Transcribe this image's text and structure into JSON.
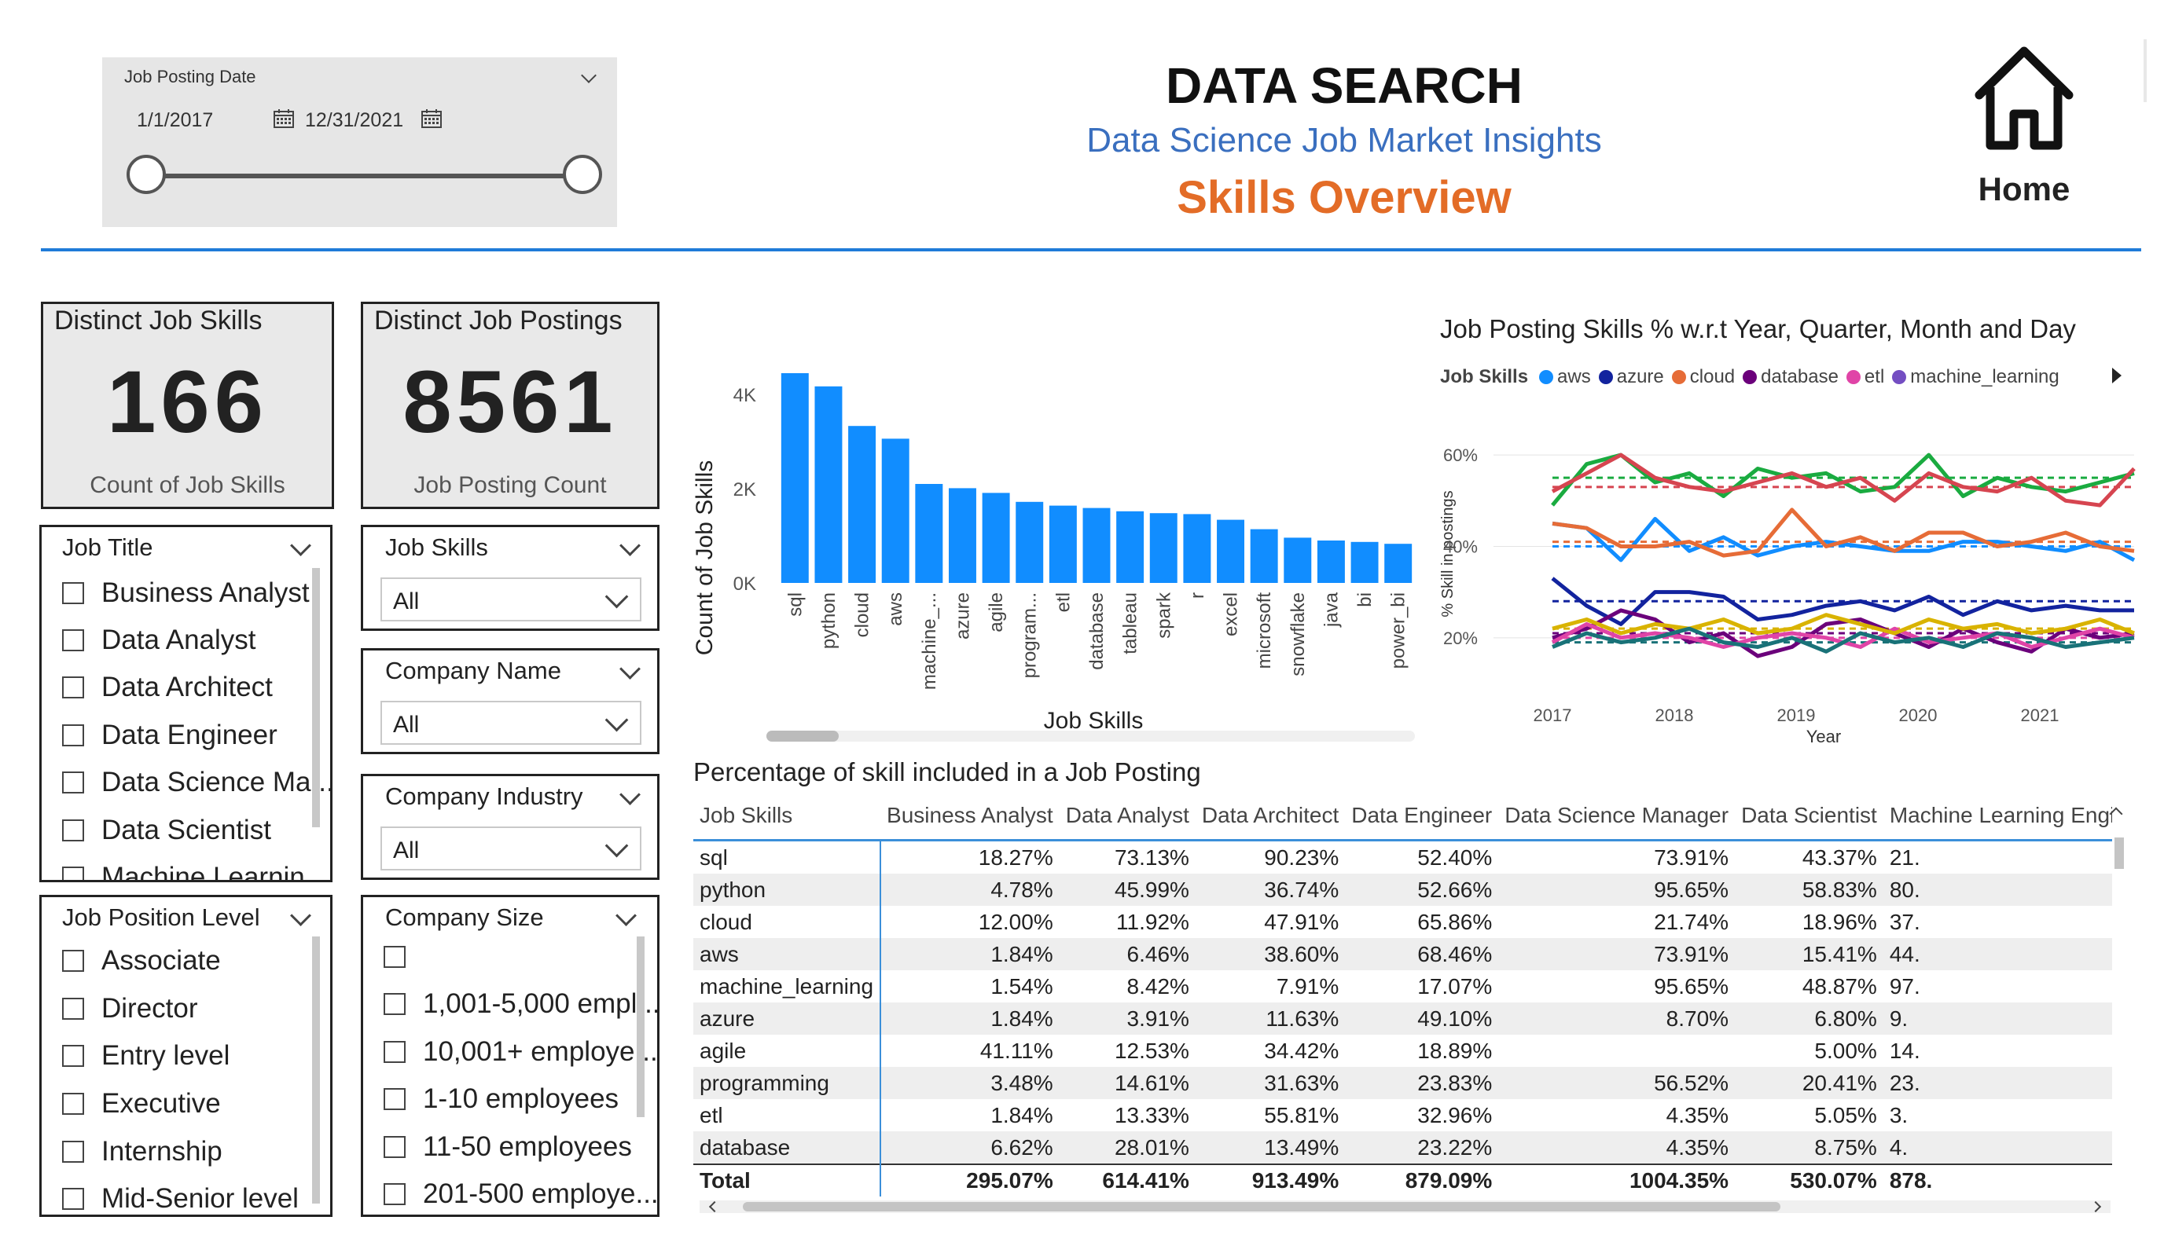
{
  "header": {
    "title": "DATA SEARCH",
    "subtitle": "Data Science Job Market Insights",
    "page": "Skills Overview",
    "home_label": "Home"
  },
  "date_slicer": {
    "label": "Job Posting Date",
    "start": "1/1/2017",
    "end": "12/31/2021"
  },
  "cards": {
    "skills": {
      "title": "Distinct Job Skills",
      "value": "166",
      "subtitle": "Count of Job Skills"
    },
    "postings": {
      "title": "Distinct Job Postings",
      "value": "8561",
      "subtitle": "Job Posting Count"
    }
  },
  "job_title": {
    "label": "Job Title",
    "options": [
      "Business Analyst",
      "Data Analyst",
      "Data Architect",
      "Data Engineer",
      "Data Science Ma...",
      "Data Scientist",
      "Machine Learnin..."
    ]
  },
  "job_position_level": {
    "label": "Job Position Level",
    "options": [
      "Associate",
      "Director",
      "Entry level",
      "Executive",
      "Internship",
      "Mid-Senior level"
    ]
  },
  "dropdowns": {
    "job_skills": {
      "label": "Job Skills",
      "value": "All"
    },
    "company_name": {
      "label": "Company Name",
      "value": "All"
    },
    "company_industry": {
      "label": "Company Industry",
      "value": "All"
    }
  },
  "company_size": {
    "label": "Company Size",
    "options": [
      "",
      "1,001-5,000 empl...",
      "10,001+ employe...",
      "1-10 employees",
      "11-50 employees",
      "201-500 employe..."
    ]
  },
  "colors": {
    "accent": "#1f7bd8",
    "bar": "#118dff",
    "subtitle": "#3a6fbf",
    "page": "#e36c27"
  },
  "chart_data": [
    {
      "type": "bar",
      "xlabel": "Job Skills",
      "ylabel": "Count of Job Skills",
      "yticks": [
        "0K",
        "2K",
        "4K"
      ],
      "ylim": [
        0,
        4700
      ],
      "categories": [
        "sql",
        "python",
        "cloud",
        "aws",
        "machine_...",
        "azure",
        "agile",
        "program...",
        "etl",
        "database",
        "tableau",
        "spark",
        "r",
        "excel",
        "microsoft",
        "snowflake",
        "java",
        "bi",
        "power_bi"
      ],
      "values": [
        4450,
        4170,
        3330,
        3060,
        2100,
        2010,
        1910,
        1720,
        1640,
        1590,
        1520,
        1480,
        1460,
        1340,
        1140,
        960,
        900,
        870,
        830
      ]
    },
    {
      "type": "line",
      "title": "Job Posting Skills % w.r.t Year, Quarter, Month and Day",
      "legend_title": "Job Skills",
      "legend": [
        {
          "name": "aws",
          "color": "#118dff"
        },
        {
          "name": "azure",
          "color": "#12239e"
        },
        {
          "name": "cloud",
          "color": "#e66c37"
        },
        {
          "name": "database",
          "color": "#6b007b"
        },
        {
          "name": "etl",
          "color": "#e044a7"
        },
        {
          "name": "machine_learning",
          "color": "#744ec2"
        }
      ],
      "xlabel": "Year",
      "ylabel": "% Skill in postings",
      "xticks": [
        "2017",
        "2018",
        "2019",
        "2020",
        "2021"
      ],
      "yticks": [
        "20%",
        "40%",
        "60%"
      ],
      "ylim": [
        10,
        65
      ],
      "series": [
        {
          "color": "#1aab40",
          "values": [
            49,
            58,
            60,
            54,
            56,
            51,
            57,
            55,
            56,
            52,
            53,
            60,
            51,
            55,
            53,
            52,
            54,
            56
          ]
        },
        {
          "color": "#d64550",
          "values": [
            52,
            56,
            60,
            55,
            53,
            52,
            54,
            56,
            53,
            55,
            50,
            56,
            53,
            52,
            55,
            50,
            49,
            57
          ]
        },
        {
          "color": "#118dff",
          "values": [
            45,
            44,
            37,
            46,
            39,
            42,
            38,
            40,
            41,
            40,
            39,
            39,
            41,
            41,
            40,
            39,
            41,
            37
          ]
        },
        {
          "color": "#e66c37",
          "values": [
            45,
            44,
            40,
            40,
            41,
            38,
            39,
            48,
            40,
            42,
            39,
            43,
            43,
            40,
            41,
            43,
            40,
            39
          ]
        },
        {
          "color": "#12239e",
          "values": [
            33,
            27,
            23,
            30,
            30,
            29,
            24,
            25,
            27,
            28,
            26,
            29,
            25,
            28,
            26,
            27,
            26,
            26
          ]
        },
        {
          "color": "#6b007b",
          "values": [
            20,
            22,
            26,
            24,
            19,
            21,
            16,
            18,
            23,
            24,
            21,
            18,
            22,
            19,
            17,
            22,
            20,
            21
          ]
        },
        {
          "color": "#e044a7",
          "values": [
            19,
            23,
            20,
            21,
            20,
            18,
            20,
            21,
            20,
            18,
            22,
            19,
            20,
            21,
            18,
            20,
            22,
            20
          ]
        },
        {
          "color": "#d9b300",
          "values": [
            22,
            24,
            21,
            23,
            22,
            24,
            21,
            22,
            25,
            23,
            21,
            24,
            22,
            23,
            21,
            22,
            24,
            21
          ]
        },
        {
          "color": "#197278",
          "values": [
            18,
            21,
            19,
            20,
            22,
            19,
            18,
            20,
            17,
            21,
            19,
            20,
            18,
            21,
            20,
            18,
            19,
            20
          ]
        }
      ],
      "trends": [
        {
          "color": "#1aab40",
          "value": 55
        },
        {
          "color": "#d64550",
          "value": 53
        },
        {
          "color": "#118dff",
          "value": 40
        },
        {
          "color": "#e66c37",
          "value": 41
        },
        {
          "color": "#12239e",
          "value": 28
        },
        {
          "color": "#6b007b",
          "value": 21
        },
        {
          "color": "#e044a7",
          "value": 20
        },
        {
          "color": "#d9b300",
          "value": 22
        },
        {
          "color": "#197278",
          "value": 19
        }
      ]
    },
    {
      "type": "table",
      "title": "Percentage of skill included in a Job Posting",
      "columns": [
        "Job Skills",
        "Business Analyst",
        "Data Analyst",
        "Data Architect",
        "Data Engineer",
        "Data Science Manager",
        "Data Scientist",
        "Machine Learning Engi"
      ],
      "rows": [
        [
          "sql",
          "18.27%",
          "73.13%",
          "90.23%",
          "52.40%",
          "73.91%",
          "43.37%",
          "21."
        ],
        [
          "python",
          "4.78%",
          "45.99%",
          "36.74%",
          "52.66%",
          "95.65%",
          "58.83%",
          "80."
        ],
        [
          "cloud",
          "12.00%",
          "11.92%",
          "47.91%",
          "65.86%",
          "21.74%",
          "18.96%",
          "37."
        ],
        [
          "aws",
          "1.84%",
          "6.46%",
          "38.60%",
          "68.46%",
          "73.91%",
          "15.41%",
          "44."
        ],
        [
          "machine_learning",
          "1.54%",
          "8.42%",
          "7.91%",
          "17.07%",
          "95.65%",
          "48.87%",
          "97."
        ],
        [
          "azure",
          "1.84%",
          "3.91%",
          "11.63%",
          "49.10%",
          "8.70%",
          "6.80%",
          "9."
        ],
        [
          "agile",
          "41.11%",
          "12.53%",
          "34.42%",
          "18.89%",
          "",
          "5.00%",
          "14."
        ],
        [
          "programming",
          "3.48%",
          "14.61%",
          "31.63%",
          "23.83%",
          "56.52%",
          "20.41%",
          "23."
        ],
        [
          "etl",
          "1.84%",
          "13.33%",
          "55.81%",
          "32.96%",
          "4.35%",
          "5.05%",
          "3."
        ],
        [
          "database",
          "6.62%",
          "28.01%",
          "13.49%",
          "23.22%",
          "4.35%",
          "8.75%",
          "4."
        ]
      ],
      "total": [
        "Total",
        "295.07%",
        "614.41%",
        "913.49%",
        "879.09%",
        "1004.35%",
        "530.07%",
        "878."
      ]
    }
  ]
}
